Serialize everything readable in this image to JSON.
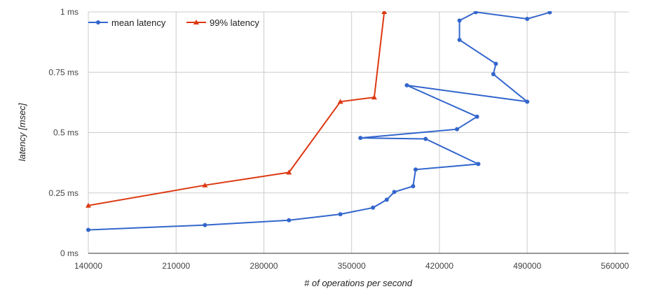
{
  "chart_data": {
    "type": "line",
    "title": "",
    "xlabel": "# of operations per second",
    "ylabel": "latency [msec]",
    "xlim": [
      140000,
      571000
    ],
    "ylim": [
      0,
      1
    ],
    "x_ticks": [
      140000,
      210000,
      280000,
      350000,
      420000,
      490000,
      560000
    ],
    "x_tick_labels": [
      "140000",
      "210000",
      "280000",
      "350000",
      "420000",
      "490000",
      "560000"
    ],
    "y_ticks": [
      0,
      0.25,
      0.5,
      0.75,
      1
    ],
    "y_tick_labels": [
      "0 ms",
      "0.25 ms",
      "0.5 ms",
      "0.75 ms",
      "1 ms"
    ],
    "grid": true,
    "legend_position": "top-left",
    "series": [
      {
        "name": "mean latency",
        "color": "#3366cc",
        "marker": "circle",
        "points": [
          [
            140000,
            0.097
          ],
          [
            233000,
            0.117
          ],
          [
            300000,
            0.137
          ],
          [
            341000,
            0.162
          ],
          [
            367000,
            0.189
          ],
          [
            378000,
            0.222
          ],
          [
            384000,
            0.254
          ],
          [
            399000,
            0.278
          ],
          [
            401000,
            0.347
          ],
          [
            451000,
            0.37
          ],
          [
            409000,
            0.474
          ],
          [
            357000,
            0.478
          ],
          [
            434000,
            0.514
          ],
          [
            450000,
            0.566
          ],
          [
            394000,
            0.696
          ],
          [
            490000,
            0.628
          ],
          [
            463000,
            0.742
          ],
          [
            465000,
            0.785
          ],
          [
            436000,
            0.884
          ],
          [
            436000,
            0.964
          ],
          [
            449000,
            0.999
          ],
          [
            490000,
            0.971
          ],
          [
            508000,
            0.998
          ]
        ]
      },
      {
        "name": "99% latency",
        "color": "#dc3912",
        "marker": "triangle",
        "points": [
          [
            140000,
            0.198
          ],
          [
            233000,
            0.282
          ],
          [
            300000,
            0.335
          ],
          [
            341000,
            0.628
          ],
          [
            368000,
            0.646
          ],
          [
            376000,
            1.0
          ]
        ]
      }
    ]
  }
}
